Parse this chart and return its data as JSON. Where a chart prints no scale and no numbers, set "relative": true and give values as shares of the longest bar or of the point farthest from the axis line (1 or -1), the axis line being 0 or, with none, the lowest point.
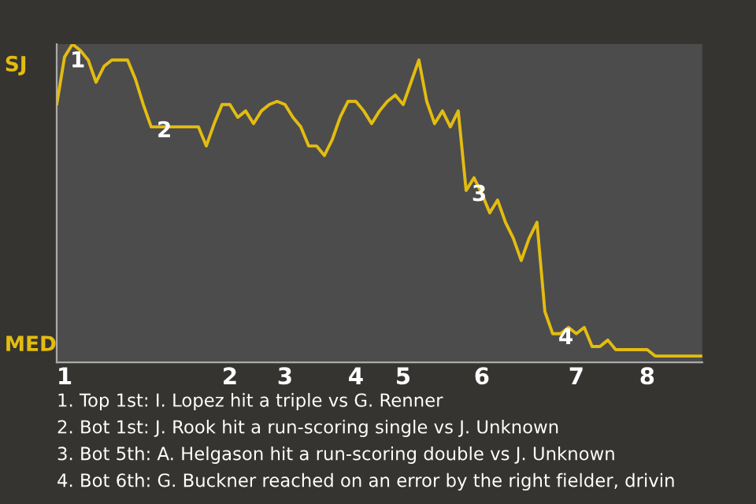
{
  "chart_data": {
    "type": "line",
    "relative": true,
    "categories": [
      null,
      "1",
      null,
      null,
      null,
      null,
      null,
      null,
      null,
      null,
      null,
      null,
      null,
      null,
      null,
      null,
      null,
      null,
      null,
      null,
      null,
      null,
      "2",
      null,
      null,
      null,
      null,
      null,
      null,
      "3",
      null,
      null,
      null,
      null,
      null,
      null,
      null,
      null,
      "4",
      null,
      null,
      null,
      null,
      null,
      "5",
      null,
      null,
      null,
      null,
      null,
      null,
      null,
      null,
      null,
      "6",
      null,
      null,
      null,
      null,
      null,
      null,
      null,
      null,
      null,
      null,
      null,
      "7",
      null,
      null,
      null,
      null,
      null,
      null,
      null,
      null,
      "8",
      null,
      null,
      null,
      null,
      null,
      null,
      null
    ],
    "series": [
      {
        "color": "#e3bc10",
        "values": [
          0.81,
          0.96,
          1,
          0.98,
          0.95,
          0.88,
          0.93,
          0.95,
          0.95,
          0.95,
          0.89,
          0.81,
          0.74,
          0.74,
          0.74,
          0.74,
          0.74,
          0.74,
          0.74,
          0.68,
          0.75,
          0.81,
          0.81,
          0.77,
          0.79,
          0.75,
          0.79,
          0.81,
          0.82,
          0.81,
          0.77,
          0.74,
          0.68,
          0.68,
          0.65,
          0.7,
          0.77,
          0.82,
          0.82,
          0.79,
          0.75,
          0.79,
          0.82,
          0.84,
          0.81,
          0.88,
          0.95,
          0.82,
          0.75,
          0.79,
          0.74,
          0.79,
          0.54,
          0.58,
          0.53,
          0.47,
          0.51,
          0.44,
          0.39,
          0.32,
          0.39,
          0.44,
          0.16,
          0.09,
          0.09,
          0.11,
          0.09,
          0.11,
          0.05,
          0.05,
          0.07,
          0.04,
          0.04,
          0.04,
          0.04,
          0.04,
          0.02,
          0.02,
          0.02,
          0.02,
          0.02,
          0.02,
          0.02
        ]
      }
    ],
    "annotations": [
      {
        "text": "1",
        "y": 0.96
      },
      {
        "text": "2",
        "y": 0.74
      },
      {
        "text": "3",
        "y": 0.54
      },
      {
        "text": "4",
        "y": 0.09
      },
      "SJ",
      "MED",
      "1. Top 1st: I. Lopez hit a triple vs G. Renner",
      "2. Bot 1st: J. Rook hit a run-scoring single vs J. Unknown",
      "3. Bot 5th: A. Helgason hit a run-scoring double vs J. Unknown",
      "4. Bot 6th: G. Buckner reached on an error by the right fielder, drivin"
    ]
  }
}
